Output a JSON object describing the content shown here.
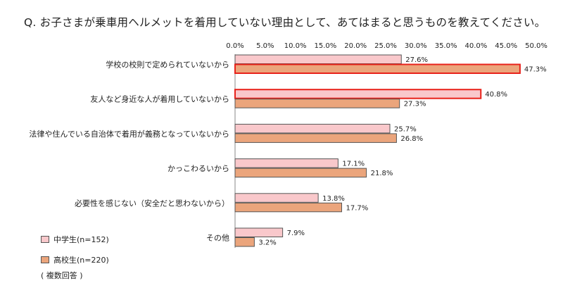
{
  "chart_data": {
    "type": "bar",
    "orientation": "horizontal",
    "title": "Q. お子さまが乗車用ヘルメットを着用していない理由として、あてはまると思うものを教えてください。",
    "categories": [
      "学校の校則で定められていないから",
      "友人など身近な人が着用していないから",
      "法律や住んでいる自治体で着用が義務となっていないから",
      "かっこわるいから",
      "必要性を感じない（安全だと思わないから）",
      "その他"
    ],
    "series": [
      {
        "name": "中学生(n=152)",
        "values": [
          27.6,
          40.8,
          25.7,
          17.1,
          13.8,
          7.9
        ],
        "color": "#f9c8cb",
        "border": "#555555"
      },
      {
        "name": "高校生(n=220)",
        "values": [
          47.3,
          27.3,
          26.8,
          21.8,
          17.7,
          3.2
        ],
        "color": "#eba57c",
        "border": "#555555"
      }
    ],
    "highlighted": [
      {
        "series": 1,
        "index": 0
      },
      {
        "series": 0,
        "index": 1
      }
    ],
    "highlight_color": "#e8221b",
    "xlim": [
      0,
      50
    ],
    "ticks": [
      "0.0%",
      "5.0%",
      "10.0%",
      "15.0%",
      "20.0%",
      "25.0%",
      "30.0%",
      "35.0%",
      "40.0%",
      "45.0%",
      "50.0%"
    ],
    "value_suffix": "%",
    "legend_position": "bottom-left",
    "note": "( 複数回答 )",
    "grid": false
  }
}
